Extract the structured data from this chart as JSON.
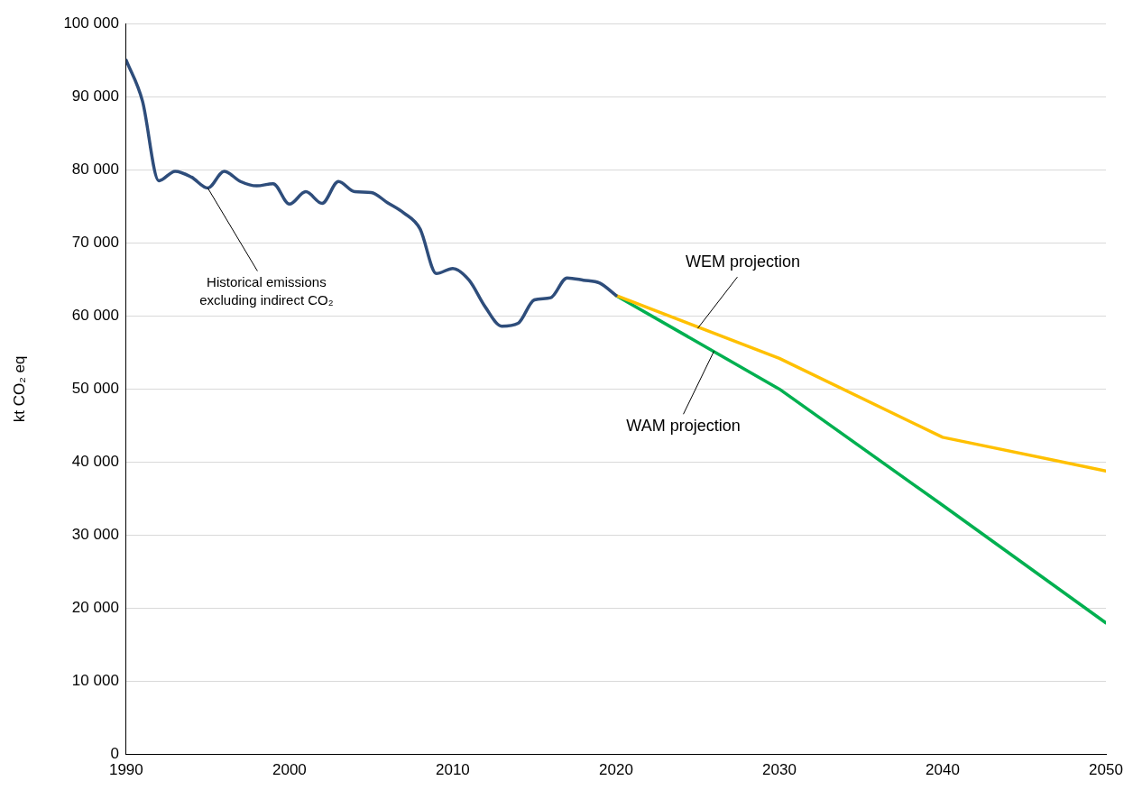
{
  "chart_data": {
    "type": "line",
    "ylabel": "kt CO₂ eq",
    "xlim": [
      1990,
      2050
    ],
    "xticks": [
      1990,
      2000,
      2010,
      2020,
      2030,
      2040,
      2050
    ],
    "ylim": [
      0,
      100000
    ],
    "yticks": [
      0,
      {
        "value": 10000,
        "label": "10 000"
      },
      {
        "value": 20000,
        "label": "20 000"
      },
      {
        "value": 30000,
        "label": "30 000"
      },
      {
        "value": 40000,
        "label": "40 000"
      },
      {
        "value": 50000,
        "label": "50 000"
      },
      {
        "value": 60000,
        "label": "60 000"
      },
      {
        "value": 70000,
        "label": "70 000"
      },
      {
        "value": 80000,
        "label": "80 000"
      },
      {
        "value": 90000,
        "label": "90 000"
      },
      {
        "value": 100000,
        "label": "100 000"
      }
    ],
    "grid": "y",
    "legend": false,
    "marker": "none",
    "line_style": "solid",
    "series": [
      {
        "type": "line",
        "color": "#2e4d7b",
        "x": [
          1990,
          1991,
          1992,
          1993,
          1994,
          1995,
          1996,
          1997,
          1998,
          1999,
          2000,
          2001,
          2002,
          2003,
          2004,
          2005,
          2006,
          2007,
          2008,
          2009,
          2010,
          2011,
          2012,
          2013,
          2014,
          2015,
          2016,
          2017,
          2018,
          2019,
          2020
        ],
        "values": [
          95000,
          89400,
          78500,
          79800,
          79000,
          77500,
          79800,
          78400,
          77800,
          78100,
          75300,
          77000,
          75400,
          78400,
          77000,
          76900,
          75500,
          74100,
          71900,
          65800,
          66500,
          64900,
          61200,
          58600,
          59000,
          62200,
          62500,
          65200,
          64900,
          64500,
          62800
        ]
      },
      {
        "type": "line",
        "color": "#ffc000",
        "x": [
          2020,
          2030,
          2040,
          2050
        ],
        "values": [
          62800,
          54200,
          43400,
          38800
        ]
      },
      {
        "type": "line",
        "color": "#00b050",
        "x": [
          2020,
          2030,
          2040,
          2050
        ],
        "values": [
          62800,
          50000,
          34100,
          18000
        ]
      }
    ],
    "annotations": [
      {
        "text": "Historical emissions excluding indirect CO₂",
        "x": 1995,
        "y": 77500
      },
      {
        "text": "WEM projection",
        "x": 2025,
        "y": 58300
      },
      {
        "text": "WAM projection",
        "x": 2026,
        "y": 55200
      }
    ]
  }
}
